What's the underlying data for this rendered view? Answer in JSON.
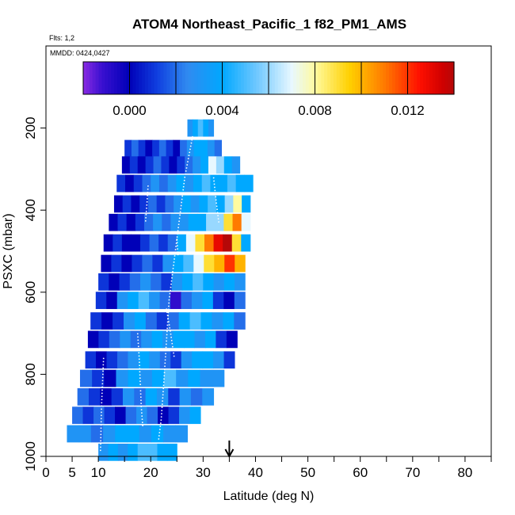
{
  "chart_data": {
    "type": "heatmap",
    "title": "ATOM4 Northeast_Pacific_1 f82_PM1_AMS",
    "flights_label": "Flts: 1,2",
    "dates_label": "MMDD: 0424,0427",
    "xlabel": "Latitude (deg N)",
    "ylabel": "PSXC (mbar)",
    "xlim": [
      0,
      85
    ],
    "ylim": [
      1000,
      0
    ],
    "x_ticks": [
      0,
      5,
      10,
      20,
      30,
      40,
      50,
      60,
      70,
      80
    ],
    "y_ticks": [
      200,
      400,
      600,
      800,
      1000
    ],
    "colorbar": {
      "ticks": [
        0.0,
        0.004,
        0.008,
        0.012
      ],
      "tick_labels": [
        "0.000",
        "0.004",
        "0.008",
        "0.012"
      ],
      "range": [
        -0.002,
        0.014
      ]
    },
    "arrow_marker": {
      "x": 35
    },
    "bins": [
      {
        "p": 200,
        "x0": 27.0,
        "x1": 32.0,
        "v": [
          0.003,
          0.004,
          0.005,
          0.004,
          0.003
        ]
      },
      {
        "p": 250,
        "x0": 15.0,
        "x1": 33.5,
        "v": [
          0.001,
          0.002,
          0.001,
          0.0,
          0.001,
          0.002,
          0.001,
          0.0,
          0.002,
          0.003,
          0.004,
          0.004,
          0.003,
          0.002
        ]
      },
      {
        "p": 290,
        "x0": 14.5,
        "x1": 37.0,
        "v": [
          0.0,
          0.001,
          0.0,
          0.001,
          0.002,
          0.001,
          0.0,
          0.001,
          0.002,
          0.003,
          0.004,
          0.007,
          0.006,
          0.004,
          0.003
        ]
      },
      {
        "p": 335,
        "x0": 13.5,
        "x1": 39.5,
        "v": [
          0.001,
          0.0,
          0.001,
          0.002,
          0.003,
          0.002,
          0.003,
          0.004,
          0.003,
          0.004,
          0.005,
          0.004,
          0.004,
          0.005,
          0.004,
          0.004
        ]
      },
      {
        "p": 385,
        "x0": 13.0,
        "x1": 39.0,
        "v": [
          0.0,
          0.001,
          0.0,
          0.001,
          0.002,
          0.001,
          0.002,
          0.003,
          0.004,
          0.003,
          0.004,
          0.005,
          0.004,
          0.006,
          0.008,
          0.004
        ]
      },
      {
        "p": 430,
        "x0": 12.0,
        "x1": 39.0,
        "v": [
          0.0,
          0.001,
          0.0,
          0.001,
          0.002,
          0.003,
          0.002,
          0.003,
          0.003,
          0.004,
          0.004,
          0.006,
          0.006,
          0.009,
          0.011,
          0.007
        ]
      },
      {
        "p": 480,
        "x0": 11.0,
        "x1": 39.0,
        "v": [
          0.0,
          0.001,
          0.0,
          0.0,
          0.001,
          0.002,
          0.001,
          0.002,
          0.004,
          0.007,
          0.009,
          0.011,
          0.013,
          0.014,
          0.009,
          0.004
        ]
      },
      {
        "p": 530,
        "x0": 10.5,
        "x1": 38.0,
        "v": [
          0.0,
          0.001,
          0.0,
          0.001,
          0.002,
          0.001,
          0.003,
          0.004,
          0.005,
          0.007,
          0.009,
          0.01,
          0.012,
          0.01
        ]
      },
      {
        "p": 575,
        "x0": 10.0,
        "x1": 38.0,
        "v": [
          0.001,
          0.0,
          0.001,
          0.002,
          0.003,
          0.002,
          0.001,
          0.003,
          0.004,
          0.005,
          0.004,
          0.003,
          0.004,
          0.003
        ]
      },
      {
        "p": 620,
        "x0": 9.5,
        "x1": 38.0,
        "v": [
          0.001,
          0.0,
          0.003,
          0.004,
          0.005,
          0.003,
          0.002,
          -0.001,
          0.002,
          0.003,
          0.004,
          0.001,
          0.0,
          0.002
        ]
      },
      {
        "p": 670,
        "x0": 8.5,
        "x1": 38.0,
        "v": [
          0.001,
          0.0,
          0.001,
          0.003,
          0.004,
          0.002,
          0.001,
          0.002,
          0.004,
          0.005,
          0.004,
          0.003,
          0.004,
          0.002
        ]
      },
      {
        "p": 715,
        "x0": 8.0,
        "x1": 36.5,
        "v": [
          0.0,
          0.001,
          0.002,
          0.003,
          0.002,
          0.003,
          0.004,
          0.003,
          0.004,
          0.004,
          0.003,
          0.004,
          0.001,
          0.0
        ]
      },
      {
        "p": 765,
        "x0": 7.5,
        "x1": 36.0,
        "v": [
          0.001,
          0.0,
          0.001,
          0.002,
          0.003,
          0.004,
          0.003,
          0.002,
          0.001,
          0.003,
          0.004,
          0.004,
          0.003,
          0.001
        ]
      },
      {
        "p": 810,
        "x0": 6.5,
        "x1": 34.0,
        "v": [
          0.002,
          0.001,
          0.0,
          0.003,
          0.004,
          0.003,
          0.004,
          0.005,
          0.003,
          0.004,
          0.003,
          0.003
        ]
      },
      {
        "p": 855,
        "x0": 6.0,
        "x1": 32.0,
        "v": [
          0.002,
          0.001,
          0.0,
          0.001,
          0.003,
          0.002,
          0.004,
          0.003,
          0.001,
          0.003,
          0.002,
          0.003
        ]
      },
      {
        "p": 900,
        "x0": 5.0,
        "x1": 29.5,
        "v": [
          0.002,
          0.001,
          0.002,
          0.001,
          0.0,
          0.002,
          0.003,
          0.002,
          0.0,
          0.001,
          0.003,
          0.004
        ]
      },
      {
        "p": 945,
        "x0": 4.0,
        "x1": 27.0,
        "v": [
          0.003,
          0.003,
          0.002,
          0.003,
          0.004,
          0.004,
          0.003,
          0.004,
          0.003,
          0.003
        ]
      },
      {
        "p": 990,
        "x0": 10.0,
        "x1": 25.0,
        "v": [
          0.003,
          0.004,
          0.003,
          0.004,
          0.005,
          0.005,
          0.004,
          0.004
        ]
      }
    ],
    "tracks": [
      {
        "x": [
          28.0,
          26.5,
          25.5,
          24.5,
          23.5,
          23.0,
          22.5,
          22.0,
          21.5
        ],
        "p": [
          220,
          320,
          420,
          520,
          620,
          720,
          820,
          910,
          960
        ]
      },
      {
        "x": [
          11.0,
          10.8,
          10.6,
          10.5,
          10.4
        ],
        "p": [
          760,
          820,
          880,
          940,
          990
        ]
      },
      {
        "x": [
          17.5,
          17.8,
          18.0,
          18.2,
          18.5
        ],
        "p": [
          700,
          760,
          820,
          880,
          930
        ]
      },
      {
        "x": [
          23.0,
          23.8,
          24.5
        ],
        "p": [
          640,
          700,
          760
        ]
      },
      {
        "x": [
          19.5,
          19.3,
          19.0
        ],
        "p": [
          340,
          380,
          430
        ]
      },
      {
        "x": [
          25.0,
          25.2
        ],
        "p": [
          470,
          510
        ]
      },
      {
        "x": [
          32.0,
          32.5,
          33.0
        ],
        "p": [
          320,
          380,
          430
        ]
      }
    ]
  }
}
